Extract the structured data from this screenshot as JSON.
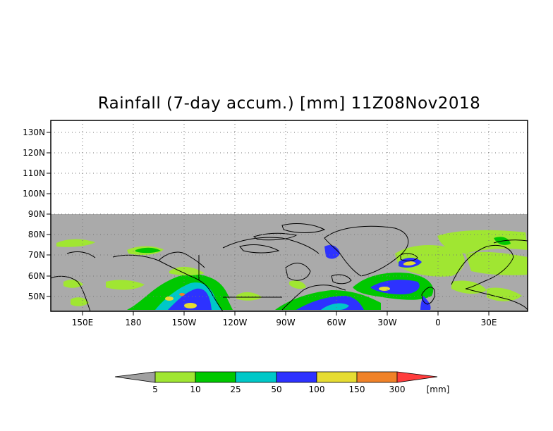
{
  "title": "Rainfall (7-day accum.) [mm] 11Z08Nov2018",
  "map": {
    "lat_labels": [
      "130N",
      "120N",
      "110N",
      "100N",
      "90N",
      "80N",
      "70N",
      "60N",
      "50N"
    ],
    "lon_labels": [
      "150E",
      "180",
      "150W",
      "120W",
      "90W",
      "60W",
      "30W",
      "0",
      "30E"
    ],
    "no_data_color": "#aaaaaa",
    "precip_bins_mm": [
      5,
      10,
      25,
      50,
      100,
      150,
      300
    ]
  },
  "legend": {
    "unit": "[mm]",
    "ticks": [
      "5",
      "10",
      "25",
      "50",
      "100",
      "150",
      "300"
    ],
    "colors": [
      "#a0a0a0",
      "#a0e632",
      "#00c800",
      "#00c8c8",
      "#2d32ff",
      "#e6dc32",
      "#f08228",
      "#ff3c3c"
    ]
  }
}
